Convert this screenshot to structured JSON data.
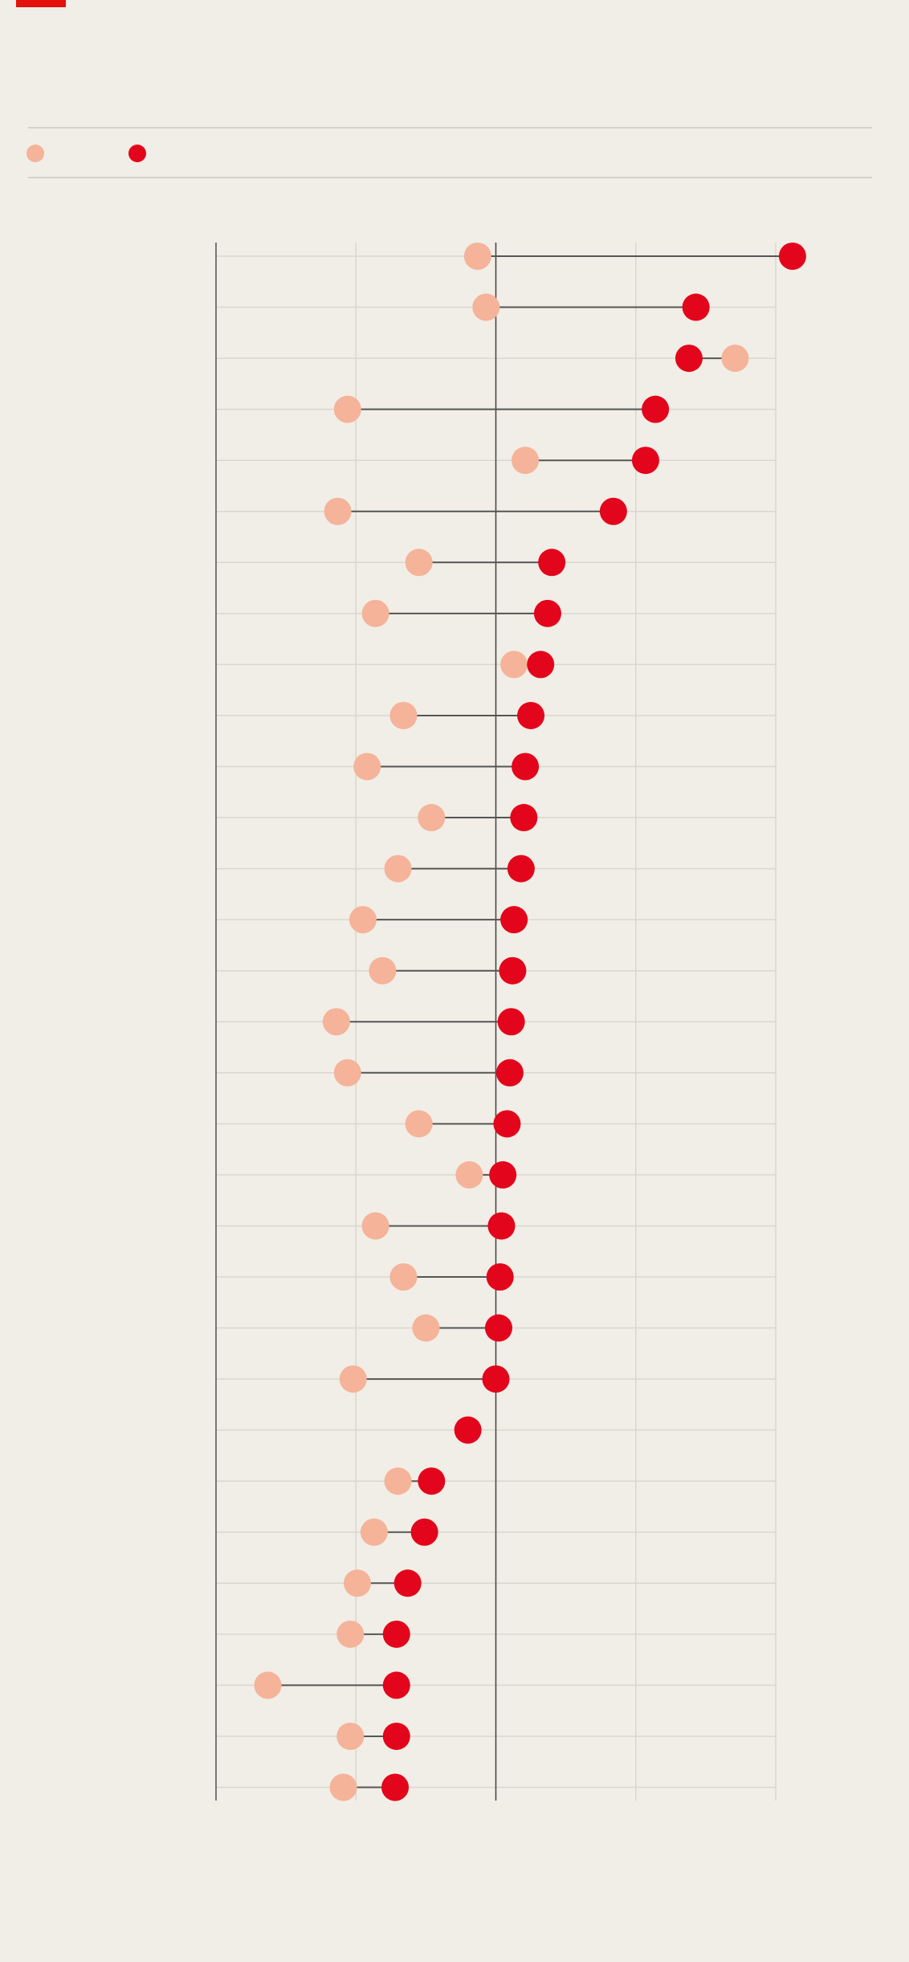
{
  "chart_data": {
    "type": "dumbbell",
    "categories": [
      null,
      null,
      null,
      null,
      null,
      null,
      null,
      null,
      null,
      null,
      null,
      null,
      null,
      null,
      null,
      null,
      null,
      null,
      null,
      null,
      null,
      null,
      null,
      null,
      null,
      null,
      null,
      null,
      null,
      null,
      null
    ],
    "series": [
      {
        "color": "#f5b39a",
        "values": [
          -0.13,
          -0.07,
          1.71,
          -1.06,
          0.21,
          -1.13,
          -0.55,
          -0.86,
          0.13,
          -0.66,
          -0.92,
          -0.46,
          -0.7,
          -0.95,
          -0.81,
          -1.14,
          -1.06,
          -0.55,
          -0.19,
          -0.86,
          -0.66,
          -0.5,
          -1.02,
          null,
          -0.7,
          -0.87,
          -0.99,
          -1.04,
          -1.63,
          -1.04,
          -1.09
        ]
      },
      {
        "color": "#e3051b",
        "values": [
          2.12,
          1.43,
          1.38,
          1.14,
          1.07,
          0.84,
          0.4,
          0.37,
          0.32,
          0.25,
          0.21,
          0.2,
          0.18,
          0.13,
          0.12,
          0.11,
          0.1,
          0.08,
          0.05,
          0.04,
          0.03,
          0.02,
          0,
          -0.2,
          -0.46,
          -0.51,
          -0.63,
          -0.71,
          -0.71,
          -0.71,
          -0.72
        ]
      }
    ],
    "xlim": [
      -2,
      2
    ],
    "xticks": [
      -2,
      -1,
      0,
      1,
      2
    ],
    "grid": true,
    "reference": 0
  }
}
